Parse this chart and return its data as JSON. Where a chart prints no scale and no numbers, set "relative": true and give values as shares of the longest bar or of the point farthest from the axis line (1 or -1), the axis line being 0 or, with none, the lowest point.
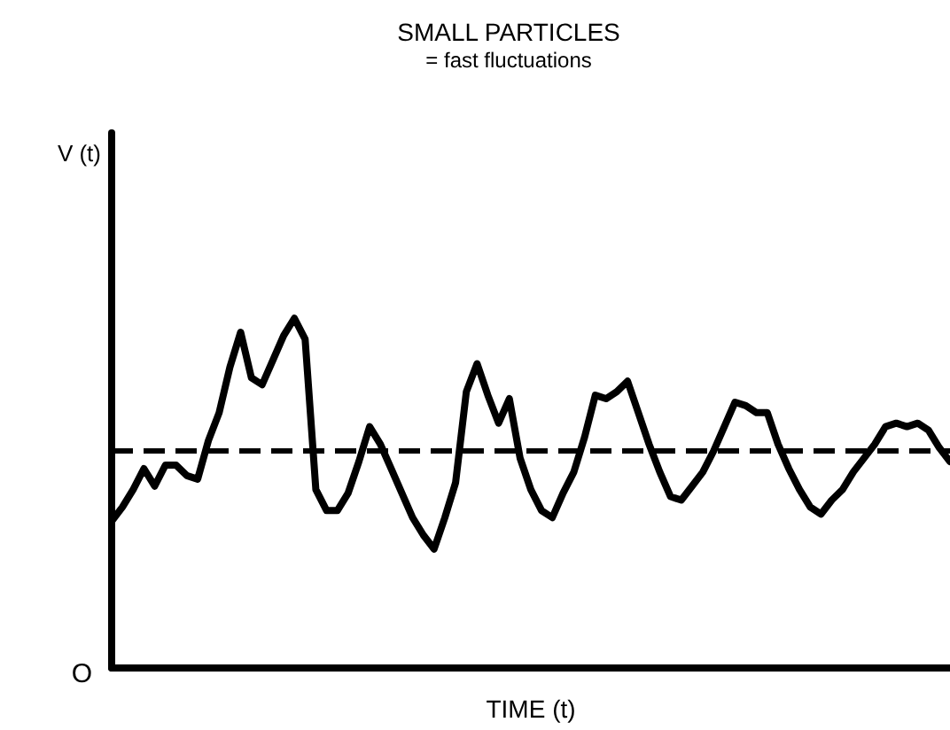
{
  "chart_data": {
    "type": "line",
    "title": "SMALL PARTICLES",
    "subtitle": "= fast fluctuations",
    "xlabel": "TIME (t)",
    "annotations": [
      "V (t)",
      "O"
    ],
    "relative": true,
    "grid": false,
    "line_style": "solid",
    "categories": [
      null,
      null,
      null,
      null,
      null,
      null,
      null,
      null,
      null,
      null,
      null,
      null,
      null,
      null,
      null,
      null,
      null,
      null,
      null,
      null,
      null,
      null,
      null,
      null,
      null,
      null,
      null,
      null,
      null,
      null,
      null,
      null,
      null,
      null,
      null,
      null,
      null,
      null,
      null,
      null,
      null,
      null,
      null,
      null,
      null,
      null,
      null,
      null,
      null,
      null,
      null,
      null,
      null,
      null,
      null,
      null,
      null,
      null,
      null,
      null,
      null,
      null,
      null,
      null,
      null,
      null,
      null,
      null,
      null,
      null,
      null,
      null,
      null,
      null,
      null,
      null,
      null,
      null,
      null
    ],
    "series": [
      {
        "color": "#000000",
        "values": [
          0.42,
          0.46,
          0.51,
          0.57,
          0.52,
          0.58,
          0.58,
          0.55,
          0.54,
          0.65,
          0.73,
          0.86,
          0.96,
          0.83,
          0.81,
          0.88,
          0.95,
          1,
          0.94,
          0.51,
          0.45,
          0.45,
          0.5,
          0.59,
          0.69,
          0.64,
          0.57,
          0.5,
          0.43,
          0.38,
          0.34,
          0.43,
          0.53,
          0.79,
          0.87,
          0.78,
          0.7,
          0.77,
          0.6,
          0.51,
          0.45,
          0.43,
          0.5,
          0.56,
          0.66,
          0.78,
          0.77,
          0.79,
          0.82,
          0.73,
          0.64,
          0.56,
          0.49,
          0.48,
          0.52,
          0.56,
          0.62,
          0.69,
          0.76,
          0.75,
          0.73,
          0.73,
          0.64,
          0.57,
          0.51,
          0.46,
          0.44,
          0.48,
          0.51,
          0.56,
          0.6,
          0.64,
          0.69,
          0.7,
          0.69,
          0.7,
          0.68,
          0.63,
          0.59
        ]
      }
    ],
    "ref_lines": [
      {
        "axis": "y",
        "value": 0.62,
        "color": "#000000",
        "line_style": "dashed"
      }
    ]
  }
}
